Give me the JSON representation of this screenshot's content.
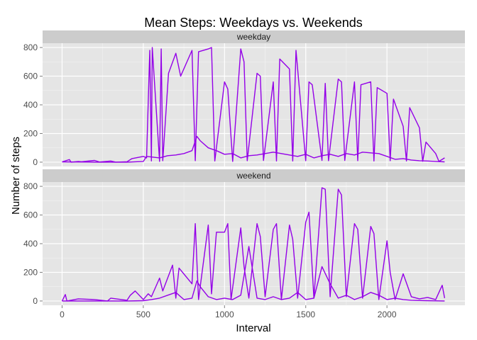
{
  "chart_data": {
    "type": "line",
    "title": "Mean Steps: Weekdays vs. Weekends",
    "xlabel": "Interval",
    "ylabel": "Number of steps",
    "xlim": [
      -120,
      2480
    ],
    "ylim": [
      -30,
      830
    ],
    "x_ticks": [
      0,
      500,
      1000,
      1500,
      2000
    ],
    "y_ticks": [
      0,
      200,
      400,
      600,
      800
    ],
    "grid": true,
    "line_color": "#9400e8",
    "panel_background": "#e5e5e5",
    "strip_background": "#cccccc",
    "facets": [
      {
        "label": "weekday",
        "series": [
          {
            "x": [
              0,
              45,
              55,
              100,
              120,
              200,
              230,
              300,
              330,
              400,
              430,
              500,
              520,
              540,
              550,
              555,
              600,
              610,
              620,
              655,
              700,
              730,
              800,
              820,
              840,
              900,
              920,
              940,
              1000,
              1020,
              1050,
              1100,
              1120,
              1140,
              1200,
              1220,
              1240,
              1300,
              1320,
              1340,
              1400,
              1420,
              1440,
              1500,
              1520,
              1540,
              1600,
              1620,
              1640,
              1700,
              1720,
              1740,
              1800,
              1820,
              1840,
              1900,
              1920,
              1940,
              2000,
              2020,
              2040,
              2100,
              2120,
              2140,
              2200,
              2220,
              2240,
              2300,
              2320,
              2355
            ],
            "y": [
              2,
              18,
              0,
              5,
              3,
              12,
              1,
              8,
              0,
              3,
              25,
              40,
              30,
              780,
              8,
              800,
              5,
              790,
              10,
              620,
              760,
              600,
              780,
              10,
              770,
              790,
              800,
              8,
              560,
              510,
              5,
              790,
              700,
              10,
              620,
              600,
              12,
              560,
              8,
              720,
              650,
              8,
              780,
              10,
              560,
              540,
              12,
              550,
              10,
              580,
              560,
              12,
              560,
              10,
              540,
              560,
              8,
              520,
              480,
              10,
              440,
              250,
              8,
              380,
              240,
              6,
              140,
              60,
              5,
              30
            ]
          },
          {
            "x": [
              0,
              100,
              200,
              300,
              400,
              500,
              520,
              600,
              650,
              700,
              750,
              800,
              830,
              850,
              900,
              950,
              1000,
              1050,
              1100,
              1150,
              1200,
              1250,
              1300,
              1350,
              1400,
              1450,
              1500,
              1550,
              1600,
              1650,
              1700,
              1750,
              1800,
              1850,
              1900,
              1950,
              2000,
              2050,
              2100,
              2150,
              2200,
              2250,
              2300,
              2355
            ],
            "y": [
              2,
              1,
              0,
              0,
              0,
              5,
              40,
              30,
              45,
              50,
              60,
              80,
              180,
              150,
              100,
              80,
              55,
              60,
              30,
              45,
              50,
              60,
              70,
              60,
              50,
              40,
              55,
              30,
              45,
              55,
              40,
              60,
              50,
              70,
              65,
              60,
              40,
              20,
              25,
              15,
              10,
              8,
              5,
              2
            ]
          }
        ]
      },
      {
        "label": "weekend",
        "series": [
          {
            "x": [
              0,
              20,
              30,
              100,
              200,
              280,
              300,
              400,
              420,
              450,
              500,
              530,
              550,
              600,
              620,
              680,
              700,
              720,
              800,
              820,
              840,
              900,
              920,
              950,
              1000,
              1020,
              1040,
              1100,
              1120,
              1150,
              1200,
              1220,
              1250,
              1300,
              1320,
              1350,
              1400,
              1420,
              1450,
              1500,
              1520,
              1550,
              1600,
              1620,
              1650,
              1700,
              1720,
              1750,
              1800,
              1820,
              1850,
              1900,
              1920,
              1950,
              2000,
              2020,
              2050,
              2100,
              2150,
              2200,
              2250,
              2300,
              2340,
              2355
            ],
            "y": [
              0,
              45,
              0,
              15,
              10,
              0,
              20,
              5,
              40,
              70,
              10,
              50,
              30,
              160,
              70,
              250,
              20,
              230,
              120,
              540,
              10,
              530,
              50,
              480,
              480,
              540,
              10,
              510,
              240,
              20,
              540,
              450,
              30,
              500,
              540,
              10,
              530,
              430,
              20,
              550,
              620,
              20,
              790,
              780,
              30,
              780,
              740,
              30,
              540,
              500,
              20,
              520,
              470,
              10,
              420,
              200,
              10,
              190,
              30,
              15,
              25,
              10,
              110,
              20
            ]
          },
          {
            "x": [
              0,
              100,
              200,
              300,
              400,
              500,
              550,
              600,
              650,
              700,
              750,
              800,
              830,
              850,
              900,
              950,
              1000,
              1050,
              1100,
              1150,
              1200,
              1250,
              1300,
              1350,
              1400,
              1450,
              1500,
              1550,
              1600,
              1650,
              1700,
              1750,
              1800,
              1850,
              1900,
              1950,
              2000,
              2050,
              2100,
              2150,
              2200,
              2250,
              2300,
              2355
            ],
            "y": [
              0,
              0,
              0,
              0,
              0,
              2,
              10,
              20,
              40,
              60,
              10,
              20,
              140,
              100,
              30,
              10,
              20,
              10,
              40,
              380,
              20,
              10,
              30,
              10,
              20,
              60,
              10,
              20,
              240,
              120,
              20,
              40,
              10,
              30,
              60,
              40,
              10,
              20,
              10,
              5,
              3,
              2,
              1,
              0
            ]
          }
        ]
      }
    ]
  }
}
